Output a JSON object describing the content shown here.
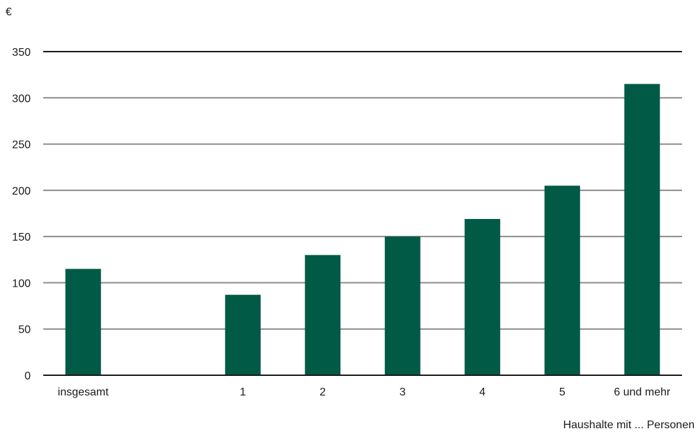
{
  "chart_data": {
    "type": "bar",
    "ylabel": "€",
    "xlabel": "Haushalte mit ... Personen",
    "categories": [
      "insgesamt",
      "",
      "1",
      "2",
      "3",
      "4",
      "5",
      "6 und mehr"
    ],
    "values": [
      115,
      null,
      87,
      130,
      150,
      169,
      205,
      315
    ],
    "ylim": [
      0,
      350
    ],
    "yticks": [
      0,
      50,
      100,
      150,
      200,
      250,
      300,
      350
    ],
    "grid": true,
    "colors": {
      "bar": "#005a45",
      "grid": "#8c8c8c",
      "axis": "#1a1a1a"
    }
  }
}
